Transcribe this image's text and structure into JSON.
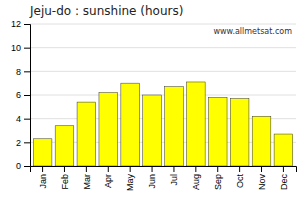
{
  "chart_data": {
    "type": "bar",
    "title": "Jeju-do : sunshine (hours)",
    "categories": [
      "Jan",
      "Feb",
      "Mar",
      "Apr",
      "May",
      "Jun",
      "Jul",
      "Aug",
      "Sep",
      "Oct",
      "Nov",
      "Dec"
    ],
    "values": [
      2.3,
      3.4,
      5.4,
      6.2,
      7.0,
      6.0,
      6.7,
      7.1,
      5.8,
      5.7,
      4.2,
      2.7
    ],
    "color": "#ffff00",
    "ylim": [
      0,
      12
    ],
    "yticks": [
      0,
      2,
      4,
      6,
      8,
      10,
      12
    ],
    "grid": true,
    "annotations": [
      "www.allmetsat.com"
    ]
  }
}
